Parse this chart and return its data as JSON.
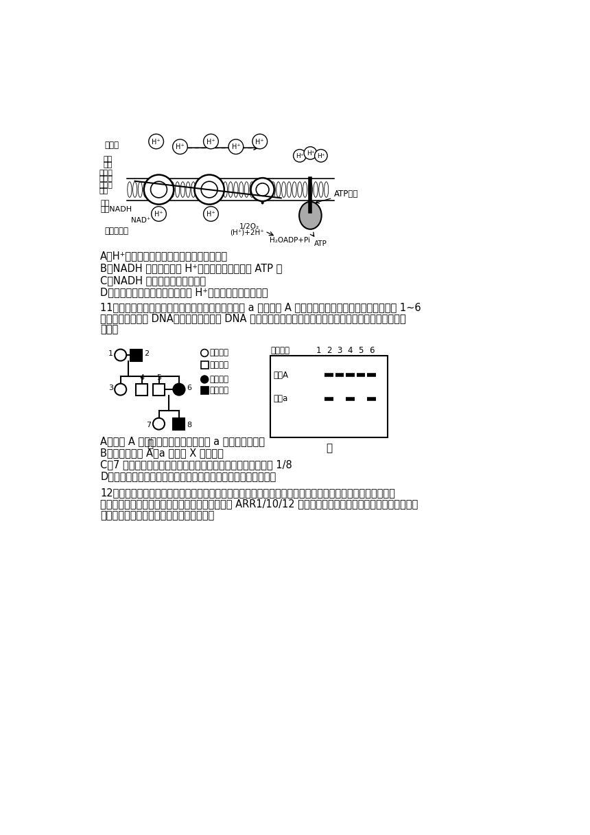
{
  "bg_color": "#ffffff",
  "fig_width": 8.6,
  "fig_height": 12.16,
  "dpi": 100,
  "lines_section1": [
    "A．H⁺通过线粒体内膜进出膜间隙的方式相同",
    "B．NADH 中的能量通过 H⁺的电化学势能转移到 ATP 中",
    "C．NADH 全部来自于糖酵解过程",
    "D．电子传递链对线粒体内膜两侧 H⁺梯度的形成起抑制作用"
  ],
  "q11_lines": [
    "11．图甲是某种隐性遗传病家系的系谱图，致病基因 a 是由基因 A 编码序列部分缺失产生的，从该家系的 1~6",
    "号个体中分别提取 DNA，经酶切、电泳和 DNA 探针杂交得到的基因检测结果如图乙所示。下列有关分析错",
    "误的是"
  ],
  "lines_section2": [
    "A．基因 A 编码序列部分缺失产生基因 a 属于染色体变异",
    "B．据图可推测 A、a 只位于 X 染色体上",
    "C．7 号个体与一个正常男性结婚，生出一个患病男孩的概率为 1/8",
    "D．通过基因检测在一定程度上能够有效地预防该病的产生和发展"
  ],
  "q12_lines": [
    "12．各种环境信号调控植物生长发育的信号通路中，植物激素是其中重要的信号分子。研究发现，盐胁迫可通",
    "过诱导细胞分裂素信号通路中一个重要的响应因子 ARR1/10/12 的降解，使植物的生长受到抑制并进一步适应",
    "盐胁迫，过程如图所示。下列说法错误的是"
  ]
}
